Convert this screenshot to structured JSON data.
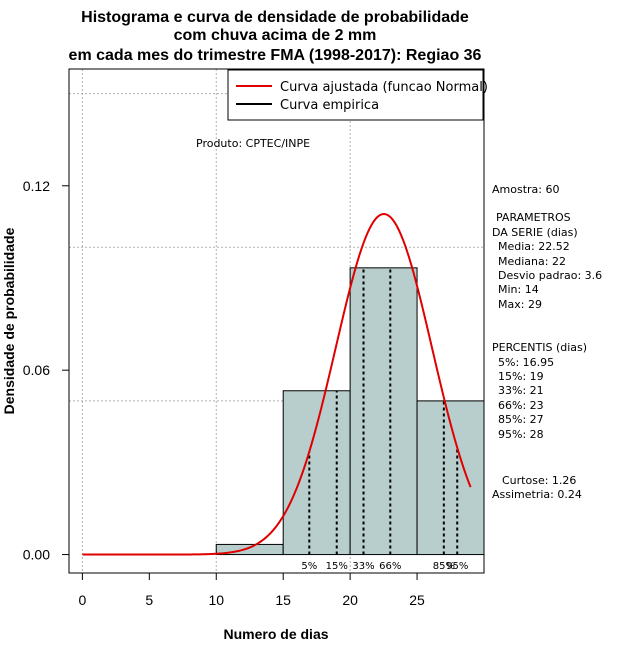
{
  "chart_data": {
    "type": "bar",
    "title_lines": [
      "Histograma e curva de densidade de probabilidade",
      "com chuva acima de 2 mm",
      "em cada mes do trimestre FMA (1998-2017): Regiao 36"
    ],
    "xlabel": "Numero de dias",
    "ylabel": "Densidade de probabilidade",
    "xlim": [
      -1,
      30
    ],
    "ylim": [
      -0.006,
      0.158
    ],
    "xticks": [
      0,
      5,
      10,
      15,
      20,
      25
    ],
    "yticks": [
      0.0,
      0.06,
      0.12
    ],
    "ytick_labels": [
      "0.00",
      "0.06",
      "0.12"
    ],
    "grid_x": [
      0,
      10,
      20,
      30
    ],
    "grid_y": [
      0.05,
      0.1,
      0.15
    ],
    "bins": [
      {
        "x0": 10,
        "x1": 15,
        "density": 0.0033
      },
      {
        "x0": 15,
        "x1": 20,
        "density": 0.0533
      },
      {
        "x0": 20,
        "x1": 25,
        "density": 0.0933
      },
      {
        "x0": 25,
        "x1": 30,
        "density": 0.05
      }
    ],
    "bar_color": "#b8cecd",
    "normal_curve": {
      "mean": 22.52,
      "sd": 3.6,
      "x_start": 0,
      "x_end": 29,
      "color": "#e00000"
    },
    "percentile_lines": [
      {
        "label": "5%",
        "x": 16.95
      },
      {
        "label": "15%",
        "x": 19
      },
      {
        "label": "33%",
        "x": 21
      },
      {
        "label": "66%",
        "x": 23
      },
      {
        "label": "85%",
        "x": 27
      },
      {
        "label": "95%",
        "x": 28
      }
    ],
    "legend": {
      "placement": "top-right",
      "entries": [
        {
          "label": "Curva ajustada (funcao Normal)",
          "color": "#e00000"
        },
        {
          "label": "Curva empirica",
          "color": "#000000"
        }
      ]
    },
    "annotation": "Produto: CPTEC/INPE"
  },
  "stats_panel": [
    "Amostra: 60",
    "PARAMETROS",
    "DA SERIE (dias)",
    "Media: 22.52",
    "Mediana: 22",
    "Desvio padrao: 3.6",
    "Min: 14",
    "Max: 29",
    "PERCENTIS (dias)",
    "5%: 16.95",
    "15%: 19",
    "33%: 21",
    "66%: 23",
    "85%: 27",
    "95%: 28",
    "Curtose: 1.26",
    "Assimetria: 0.24"
  ]
}
